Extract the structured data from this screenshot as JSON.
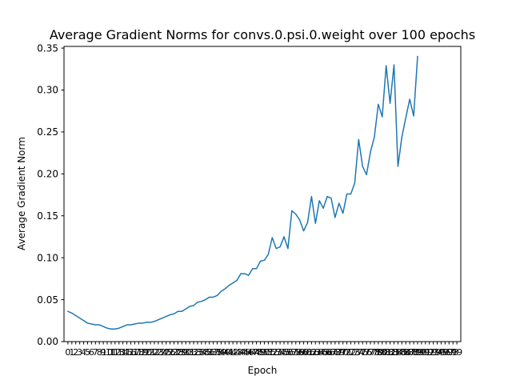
{
  "chart_data": {
    "type": "line",
    "title": "Average Gradient Norms for convs.0.psi.0.weight over 100 epochs",
    "xlabel": "Epoch",
    "ylabel": "Average Gradient Norm",
    "xlim": [
      -1,
      100
    ],
    "ylim": [
      0.0,
      0.352
    ],
    "y_ticks": [
      0.0,
      0.05,
      0.1,
      0.15,
      0.2,
      0.25,
      0.3,
      0.35
    ],
    "y_tick_labels": [
      "0.00",
      "0.05",
      "0.10",
      "0.15",
      "0.20",
      "0.25",
      "0.30",
      "0.35"
    ],
    "x_ticks": [
      0,
      1,
      2,
      3,
      4,
      5,
      6,
      7,
      8,
      9,
      10,
      11,
      12,
      13,
      14,
      15,
      16,
      17,
      18,
      19,
      20,
      21,
      22,
      23,
      24,
      25,
      26,
      27,
      28,
      29,
      30,
      31,
      32,
      33,
      34,
      35,
      36,
      37,
      38,
      39,
      40,
      41,
      42,
      43,
      44,
      45,
      46,
      47,
      48,
      49,
      50,
      51,
      52,
      53,
      54,
      55,
      56,
      57,
      58,
      59,
      60,
      61,
      62,
      63,
      64,
      65,
      66,
      67,
      68,
      69,
      70,
      71,
      72,
      73,
      74,
      75,
      76,
      77,
      78,
      79,
      80,
      81,
      82,
      83,
      84,
      85,
      86,
      87,
      88,
      89,
      90,
      91,
      92,
      93,
      94,
      95,
      96,
      97,
      98,
      99
    ],
    "grid": false,
    "series": [
      {
        "color": "#1f77b4",
        "x": [
          0,
          1,
          2,
          3,
          4,
          5,
          6,
          7,
          8,
          9,
          10,
          11,
          12,
          13,
          14,
          15,
          16,
          17,
          18,
          19,
          20,
          21,
          22,
          23,
          24,
          25,
          26,
          27,
          28,
          29,
          30,
          31,
          32,
          33,
          34,
          35,
          36,
          37,
          38,
          39,
          40,
          41,
          42,
          43,
          44,
          45,
          46,
          47,
          48,
          49,
          50,
          51,
          52,
          53,
          54,
          55,
          56,
          57,
          58,
          59,
          60,
          61,
          62,
          63,
          64,
          65,
          66,
          67,
          68,
          69,
          70,
          71,
          72,
          73,
          74,
          75,
          76,
          77,
          78,
          79,
          80,
          81,
          82,
          83,
          84,
          85,
          86,
          87,
          88,
          89
        ],
        "values": [
          0.036,
          0.034,
          0.031,
          0.028,
          0.025,
          0.022,
          0.021,
          0.02,
          0.02,
          0.018,
          0.016,
          0.015,
          0.015,
          0.016,
          0.018,
          0.02,
          0.02,
          0.021,
          0.022,
          0.022,
          0.023,
          0.023,
          0.024,
          0.026,
          0.028,
          0.03,
          0.032,
          0.033,
          0.036,
          0.036,
          0.039,
          0.042,
          0.043,
          0.047,
          0.048,
          0.05,
          0.053,
          0.053,
          0.055,
          0.06,
          0.063,
          0.067,
          0.07,
          0.073,
          0.081,
          0.081,
          0.079,
          0.087,
          0.087,
          0.096,
          0.097,
          0.104,
          0.124,
          0.111,
          0.113,
          0.125,
          0.111,
          0.156,
          0.152,
          0.145,
          0.132,
          0.142,
          0.173,
          0.141,
          0.168,
          0.159,
          0.173,
          0.171,
          0.148,
          0.165,
          0.153,
          0.176,
          0.176,
          0.189,
          0.241,
          0.209,
          0.199,
          0.226,
          0.244,
          0.283,
          0.268,
          0.329,
          0.284,
          0.33,
          0.209,
          0.244,
          0.267,
          0.289,
          0.269,
          0.34
        ]
      }
    ]
  }
}
